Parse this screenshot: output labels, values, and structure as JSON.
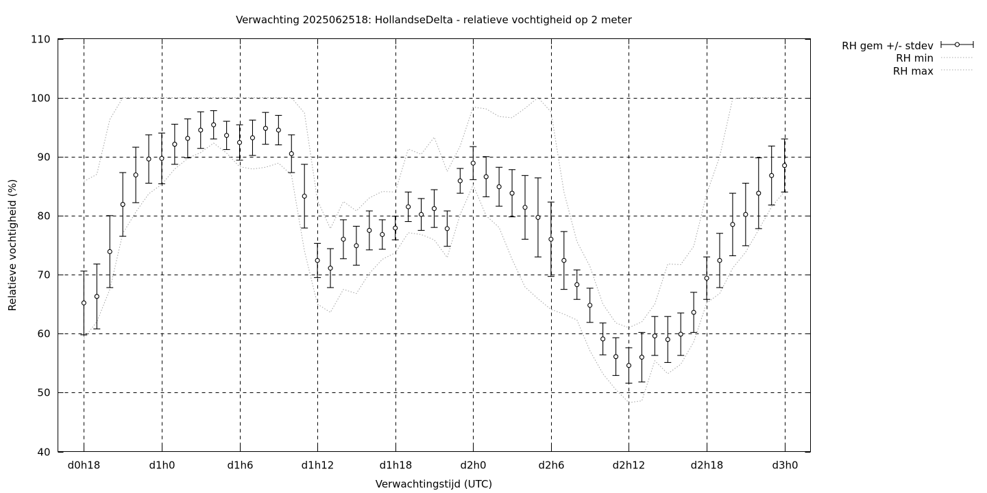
{
  "chart_data": {
    "type": "line",
    "title": "Verwachting 2025062518: HollandseDelta - relatieve vochtigheid op 2 meter",
    "xlabel": "Verwachtingstijd (UTC)",
    "ylabel": "Relatieve vochtigheid (%)",
    "ylim": [
      40,
      110
    ],
    "yticks": [
      40,
      50,
      60,
      70,
      80,
      90,
      100,
      110
    ],
    "xlim_hours": [
      -2,
      56
    ],
    "xticks": [
      {
        "hour": 0,
        "label": "d0h18"
      },
      {
        "hour": 6,
        "label": "d1h0"
      },
      {
        "hour": 12,
        "label": "d1h6"
      },
      {
        "hour": 18,
        "label": "d1h12"
      },
      {
        "hour": 24,
        "label": "d1h18"
      },
      {
        "hour": 30,
        "label": "d2h0"
      },
      {
        "hour": 36,
        "label": "d2h6"
      },
      {
        "hour": 42,
        "label": "d2h12"
      },
      {
        "hour": 48,
        "label": "d2h18"
      },
      {
        "hour": 54,
        "label": "d3h0"
      }
    ],
    "grid": true,
    "legend_position": "outside-top-right",
    "x_hours": [
      0,
      1,
      2,
      3,
      4,
      5,
      6,
      7,
      8,
      9,
      10,
      11,
      12,
      13,
      14,
      15,
      16,
      17,
      18,
      19,
      20,
      21,
      22,
      23,
      24,
      25,
      26,
      27,
      28,
      29,
      30,
      31,
      32,
      33,
      34,
      35,
      36,
      37,
      38,
      39,
      40,
      41,
      42,
      43,
      44,
      45,
      46,
      47,
      48,
      49,
      50,
      51,
      52,
      53,
      54
    ],
    "series": [
      {
        "name": "RH gem +/- stdev",
        "style": "errorbars",
        "mean": [
          65.2,
          66.3,
          73.9,
          81.9,
          86.9,
          89.6,
          89.7,
          92.1,
          93.1,
          94.5,
          95.4,
          93.6,
          92.4,
          93.2,
          94.8,
          94.5,
          90.5,
          83.3,
          72.4,
          71.1,
          76.0,
          74.9,
          77.5,
          76.8,
          77.9,
          81.5,
          80.2,
          81.2,
          77.8,
          85.9,
          88.9,
          86.6,
          84.9,
          83.8,
          81.4,
          79.7,
          76.0,
          72.4,
          68.3,
          64.8,
          59.1,
          56.1,
          54.6,
          56.0,
          59.6,
          59.0,
          59.9,
          63.6,
          69.4,
          72.4,
          78.5,
          80.2,
          83.8,
          86.8,
          88.5
        ],
        "stdev": [
          5.4,
          5.5,
          6.1,
          5.4,
          4.7,
          4.1,
          4.3,
          3.4,
          3.3,
          3.1,
          2.4,
          2.4,
          3.0,
          3.0,
          2.7,
          2.5,
          3.2,
          5.4,
          2.9,
          3.3,
          3.3,
          3.3,
          3.3,
          2.5,
          2.0,
          2.5,
          2.7,
          3.2,
          3.0,
          2.1,
          2.8,
          3.4,
          3.3,
          4.0,
          5.4,
          6.7,
          6.3,
          4.9,
          2.5,
          2.9,
          2.7,
          3.2,
          3.0,
          4.2,
          3.3,
          3.9,
          3.6,
          3.4,
          3.6,
          4.6,
          5.3,
          5.3,
          6.0,
          5.0,
          4.5
        ]
      },
      {
        "name": "RH min",
        "style": "dotted",
        "values": [
          59.2,
          62.0,
          67.5,
          77.0,
          80.6,
          83.7,
          85.3,
          87.9,
          89.7,
          90.7,
          92.3,
          90.6,
          88.3,
          87.9,
          88.2,
          88.9,
          86.9,
          74.0,
          65.0,
          63.6,
          67.5,
          66.8,
          70.2,
          72.6,
          73.7,
          77.1,
          76.8,
          75.9,
          72.9,
          80.2,
          85.2,
          80.0,
          78.0,
          72.6,
          67.9,
          65.9,
          64.1,
          63.3,
          62.3,
          57.1,
          53.2,
          50.5,
          48.3,
          48.6,
          55.4,
          53.2,
          54.8,
          58.6,
          65.2,
          66.8,
          71.1,
          73.8,
          77.6,
          81.5,
          84.1
        ]
      },
      {
        "name": "RH max",
        "style": "dotted",
        "values": [
          85.8,
          87.0,
          96.3,
          100.0,
          100.0,
          100.0,
          100.0,
          100.0,
          100.0,
          100.0,
          100.0,
          100.0,
          100.0,
          100.0,
          100.0,
          100.0,
          100.0,
          97.4,
          82.6,
          77.8,
          82.4,
          80.8,
          83.0,
          84.1,
          84.0,
          91.3,
          90.4,
          93.3,
          87.5,
          91.8,
          98.4,
          98.1,
          96.8,
          96.6,
          98.2,
          100.0,
          97.6,
          84.0,
          75.6,
          71.4,
          65.0,
          61.8,
          61.0,
          62.0,
          65.0,
          71.8,
          71.7,
          74.8,
          83.7,
          90.0,
          99.8,
          100.0,
          100.0,
          100.0,
          100.0
        ]
      }
    ]
  }
}
